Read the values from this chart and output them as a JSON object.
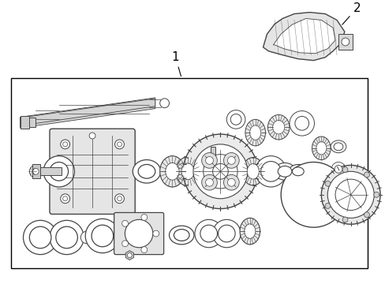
{
  "bg_color": "#ffffff",
  "border_color": "#000000",
  "line_color": "#444444",
  "figsize": [
    4.89,
    3.6
  ],
  "dpi": 100,
  "label1": "1",
  "label2": "2"
}
